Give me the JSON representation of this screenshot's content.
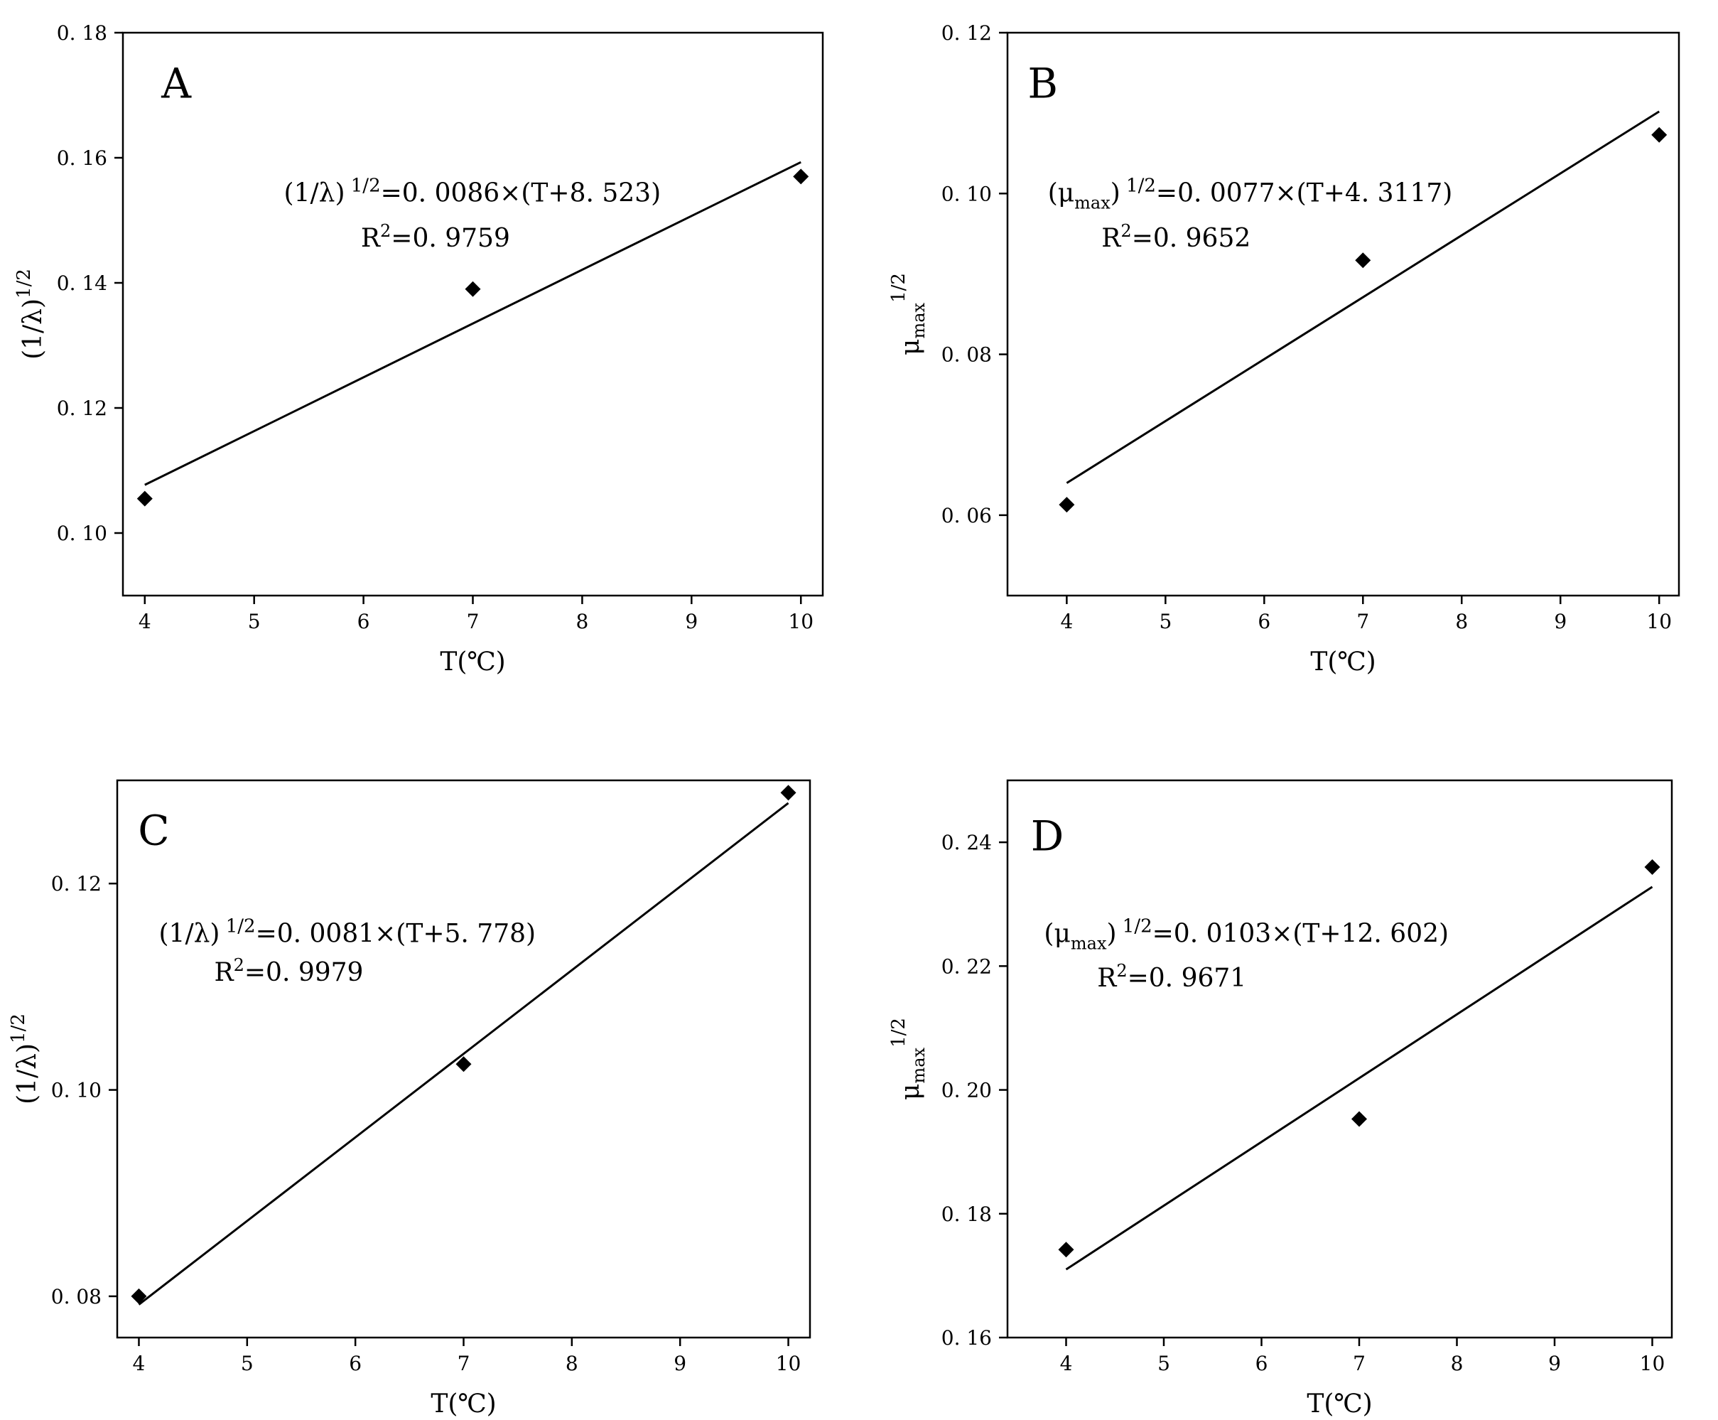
{
  "chart_data": [
    {
      "type": "scatter",
      "panel_label": "A",
      "xlabel": "T(℃)",
      "ylabel_parts": {
        "base": "(1/λ)",
        "sup": "1/2",
        "sub": ""
      },
      "xlim": [
        3.8,
        10.2
      ],
      "ylim": [
        0.09,
        0.18
      ],
      "xticks": [
        4,
        5,
        6,
        7,
        8,
        9,
        10
      ],
      "xtick_labels": [
        "4",
        "5",
        "6",
        "7",
        "8",
        "9",
        "10"
      ],
      "yticks": [
        0.1,
        0.12,
        0.14,
        0.16,
        0.18
      ],
      "ytick_labels": [
        "0. 10",
        "0. 12",
        "0. 14",
        "0. 16",
        "0. 18"
      ],
      "points": {
        "x": [
          4,
          7,
          10
        ],
        "y": [
          0.1055,
          0.139,
          0.157
        ]
      },
      "fit": {
        "slope": 0.0086,
        "shift": 8.523,
        "x_range": [
          4,
          10
        ]
      },
      "equation": {
        "prefix": "(1/λ)",
        "prefix_sub": "",
        "sup": "1/2",
        "body": "=0. 0086×(T+8. 523)"
      },
      "r2": {
        "label": "R",
        "sup": "2",
        "value": "=0. 9759"
      },
      "grid": false,
      "legend": "none"
    },
    {
      "type": "scatter",
      "panel_label": "B",
      "xlabel": "T(℃)",
      "ylabel_parts": {
        "base": "μ",
        "sub": "max",
        "sup": "1/2"
      },
      "xlim": [
        3.4,
        10.2
      ],
      "ylim": [
        0.05,
        0.12
      ],
      "xticks": [
        4,
        5,
        6,
        7,
        8,
        9,
        10
      ],
      "xtick_labels": [
        "4",
        "5",
        "6",
        "7",
        "8",
        "9",
        "10"
      ],
      "yticks": [
        0.06,
        0.08,
        0.1,
        0.12
      ],
      "ytick_labels": [
        "0. 06",
        "0. 08",
        "0. 10",
        "0. 12"
      ],
      "points": {
        "x": [
          4,
          7,
          10
        ],
        "y": [
          0.0613,
          0.0917,
          0.1073
        ]
      },
      "fit": {
        "slope": 0.0077,
        "shift": 4.3117,
        "x_range": [
          4,
          10
        ]
      },
      "equation": {
        "prefix": "(μ",
        "prefix_sub": "max",
        "prefix_close": ")",
        "sup": "1/2",
        "body": "=0. 0077×(T+4. 3117)"
      },
      "r2": {
        "label": "R",
        "sup": "2",
        "value": "=0. 9652"
      },
      "grid": false,
      "legend": "none"
    },
    {
      "type": "scatter",
      "panel_label": "C",
      "xlabel": "T(℃)",
      "ylabel_parts": {
        "base": "(1/λ)",
        "sup": "1/2",
        "sub": ""
      },
      "xlim": [
        3.8,
        10.2
      ],
      "ylim": [
        0.076,
        0.13
      ],
      "xticks": [
        4,
        5,
        6,
        7,
        8,
        9,
        10
      ],
      "xtick_labels": [
        "4",
        "5",
        "6",
        "7",
        "8",
        "9",
        "10"
      ],
      "yticks": [
        0.08,
        0.1,
        0.12
      ],
      "ytick_labels": [
        "0. 08",
        "0. 10",
        "0. 12"
      ],
      "points": {
        "x": [
          4,
          7,
          10
        ],
        "y": [
          0.08,
          0.1025,
          0.1288
        ]
      },
      "fit": {
        "slope": 0.0081,
        "shift": 5.778,
        "x_range": [
          4,
          10
        ]
      },
      "equation": {
        "prefix": "(1/λ)",
        "prefix_sub": "",
        "sup": "1/2",
        "body": "=0. 0081×(T+5. 778)"
      },
      "r2": {
        "label": "R",
        "sup": "2",
        "value": "=0. 9979"
      },
      "grid": false,
      "legend": "none"
    },
    {
      "type": "scatter",
      "panel_label": "D",
      "xlabel": "T(℃)",
      "ylabel_parts": {
        "base": "μ",
        "sub": "max",
        "sup": "1/2"
      },
      "xlim": [
        3.4,
        10.2
      ],
      "ylim": [
        0.16,
        0.25
      ],
      "xticks": [
        4,
        5,
        6,
        7,
        8,
        9,
        10
      ],
      "xtick_labels": [
        "4",
        "5",
        "6",
        "7",
        "8",
        "9",
        "10"
      ],
      "yticks": [
        0.16,
        0.18,
        0.2,
        0.22,
        0.24
      ],
      "ytick_labels": [
        "0. 16",
        "0. 18",
        "0. 20",
        "0. 22",
        "0. 24"
      ],
      "points": {
        "x": [
          4,
          7,
          10
        ],
        "y": [
          0.1742,
          0.1953,
          0.236
        ]
      },
      "fit": {
        "slope": 0.0103,
        "shift": 12.602,
        "x_range": [
          4,
          10
        ]
      },
      "equation": {
        "prefix": "(μ",
        "prefix_sub": "max",
        "prefix_close": ")",
        "sup": "1/2",
        "body": "=0. 0103×(T+12. 602)"
      },
      "r2": {
        "label": "R",
        "sup": "2",
        "value": "=0. 9671"
      },
      "grid": false,
      "legend": "none"
    }
  ]
}
